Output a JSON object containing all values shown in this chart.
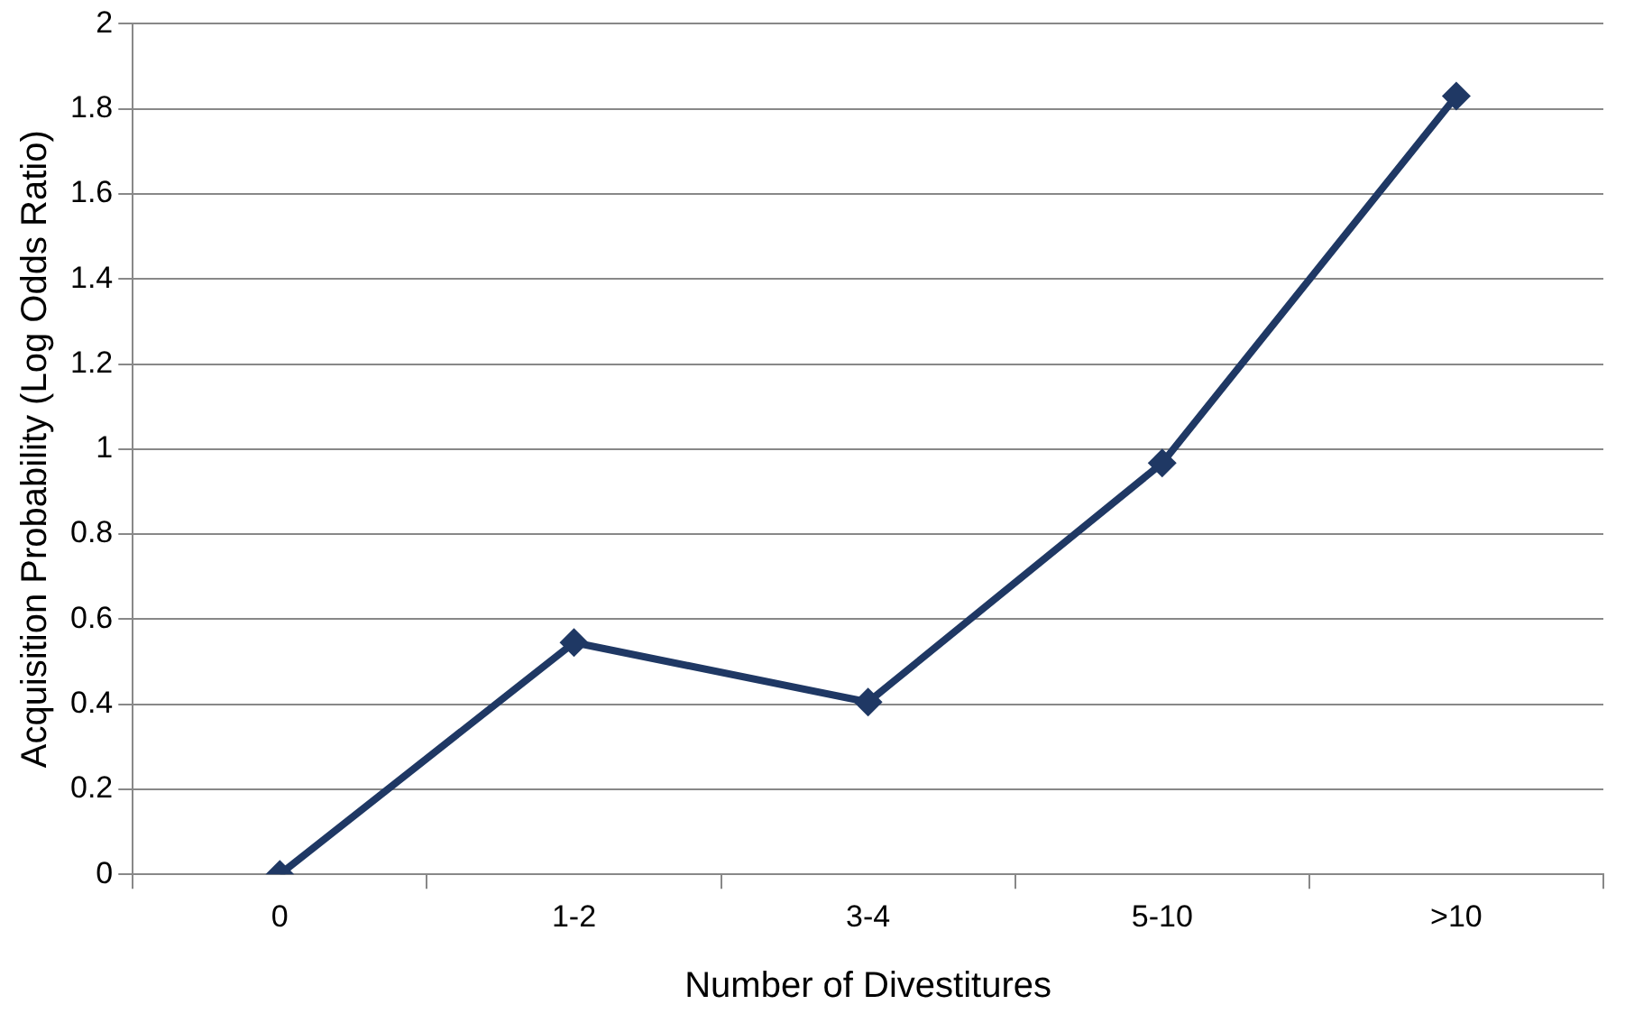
{
  "chart_data": {
    "type": "line",
    "xlabel": "Number of Divestitures",
    "ylabel": "Acquisition Probability (Log Odds Ratio)",
    "categories": [
      "0",
      "1-2",
      "3-4",
      "5-10",
      ">10"
    ],
    "series": [
      {
        "color": "#1f3864",
        "values": [
          0,
          0.545,
          0.405,
          0.967,
          1.83
        ]
      }
    ],
    "ylim": [
      0,
      2
    ],
    "yticks": [
      0,
      {
        "value": 0.2,
        "label": "0.2"
      },
      {
        "value": 0.4,
        "label": "0.4"
      },
      {
        "value": 0.6,
        "label": "0.6"
      },
      {
        "value": 0.8,
        "label": "0.8"
      },
      1,
      {
        "value": 1.2,
        "label": "1.2"
      },
      {
        "value": 1.4,
        "label": "1.4"
      },
      {
        "value": 1.6,
        "label": "1.6"
      },
      {
        "value": 1.8,
        "label": "1.8"
      },
      2
    ],
    "grid": "y",
    "legend": false,
    "marker": "diamond",
    "line_style": "solid"
  }
}
